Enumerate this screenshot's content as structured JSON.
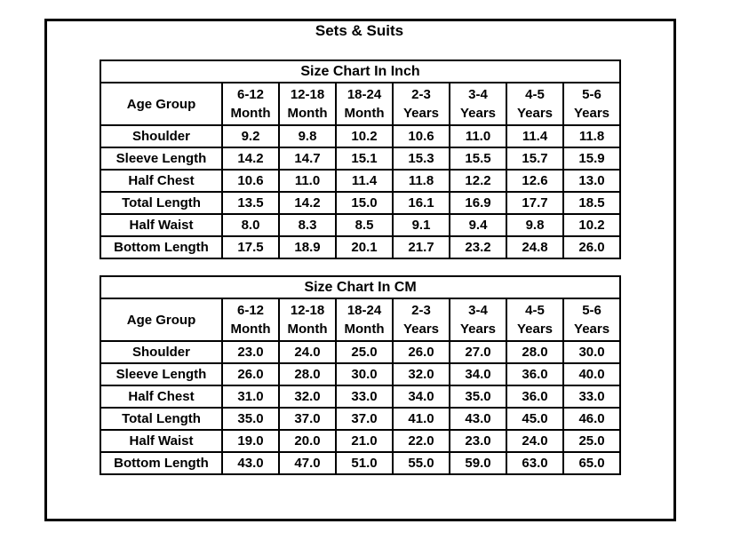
{
  "page": {
    "title": "Sets & Suits"
  },
  "colors": {
    "background": "#ffffff",
    "border": "#000000",
    "text": "#000000"
  },
  "chart_data": [
    {
      "type": "table",
      "title": "Size Chart In Inch",
      "corner_header": "Age Group",
      "col_headers": [
        {
          "top": "6-12",
          "bottom": "Month"
        },
        {
          "top": "12-18",
          "bottom": "Month"
        },
        {
          "top": "18-24",
          "bottom": "Month"
        },
        {
          "top": "2-3",
          "bottom": "Years"
        },
        {
          "top": "3-4",
          "bottom": "Years"
        },
        {
          "top": "4-5",
          "bottom": "Years"
        },
        {
          "top": "5-6",
          "bottom": "Years"
        }
      ],
      "rows": [
        {
          "label": "Shoulder",
          "values": [
            "9.2",
            "9.8",
            "10.2",
            "10.6",
            "11.0",
            "11.4",
            "11.8"
          ]
        },
        {
          "label": "Sleeve Length",
          "values": [
            "14.2",
            "14.7",
            "15.1",
            "15.3",
            "15.5",
            "15.7",
            "15.9"
          ]
        },
        {
          "label": "Half Chest",
          "values": [
            "10.6",
            "11.0",
            "11.4",
            "11.8",
            "12.2",
            "12.6",
            "13.0"
          ]
        },
        {
          "label": "Total Length",
          "values": [
            "13.5",
            "14.2",
            "15.0",
            "16.1",
            "16.9",
            "17.7",
            "18.5"
          ]
        },
        {
          "label": "Half Waist",
          "values": [
            "8.0",
            "8.3",
            "8.5",
            "9.1",
            "9.4",
            "9.8",
            "10.2"
          ]
        },
        {
          "label": "Bottom Length",
          "values": [
            "17.5",
            "18.9",
            "20.1",
            "21.7",
            "23.2",
            "24.8",
            "26.0"
          ]
        }
      ]
    },
    {
      "type": "table",
      "title": "Size Chart In CM",
      "corner_header": "Age Group",
      "col_headers": [
        {
          "top": "6-12",
          "bottom": "Month"
        },
        {
          "top": "12-18",
          "bottom": "Month"
        },
        {
          "top": "18-24",
          "bottom": "Month"
        },
        {
          "top": "2-3",
          "bottom": "Years"
        },
        {
          "top": "3-4",
          "bottom": "Years"
        },
        {
          "top": "4-5",
          "bottom": "Years"
        },
        {
          "top": "5-6",
          "bottom": "Years"
        }
      ],
      "rows": [
        {
          "label": "Shoulder",
          "values": [
            "23.0",
            "24.0",
            "25.0",
            "26.0",
            "27.0",
            "28.0",
            "30.0"
          ]
        },
        {
          "label": "Sleeve Length",
          "values": [
            "26.0",
            "28.0",
            "30.0",
            "32.0",
            "34.0",
            "36.0",
            "40.0"
          ]
        },
        {
          "label": "Half Chest",
          "values": [
            "31.0",
            "32.0",
            "33.0",
            "34.0",
            "35.0",
            "36.0",
            "33.0"
          ]
        },
        {
          "label": "Total Length",
          "values": [
            "35.0",
            "37.0",
            "37.0",
            "41.0",
            "43.0",
            "45.0",
            "46.0"
          ]
        },
        {
          "label": "Half Waist",
          "values": [
            "19.0",
            "20.0",
            "21.0",
            "22.0",
            "23.0",
            "24.0",
            "25.0"
          ]
        },
        {
          "label": "Bottom Length",
          "values": [
            "43.0",
            "47.0",
            "51.0",
            "55.0",
            "59.0",
            "63.0",
            "65.0"
          ]
        }
      ]
    }
  ]
}
